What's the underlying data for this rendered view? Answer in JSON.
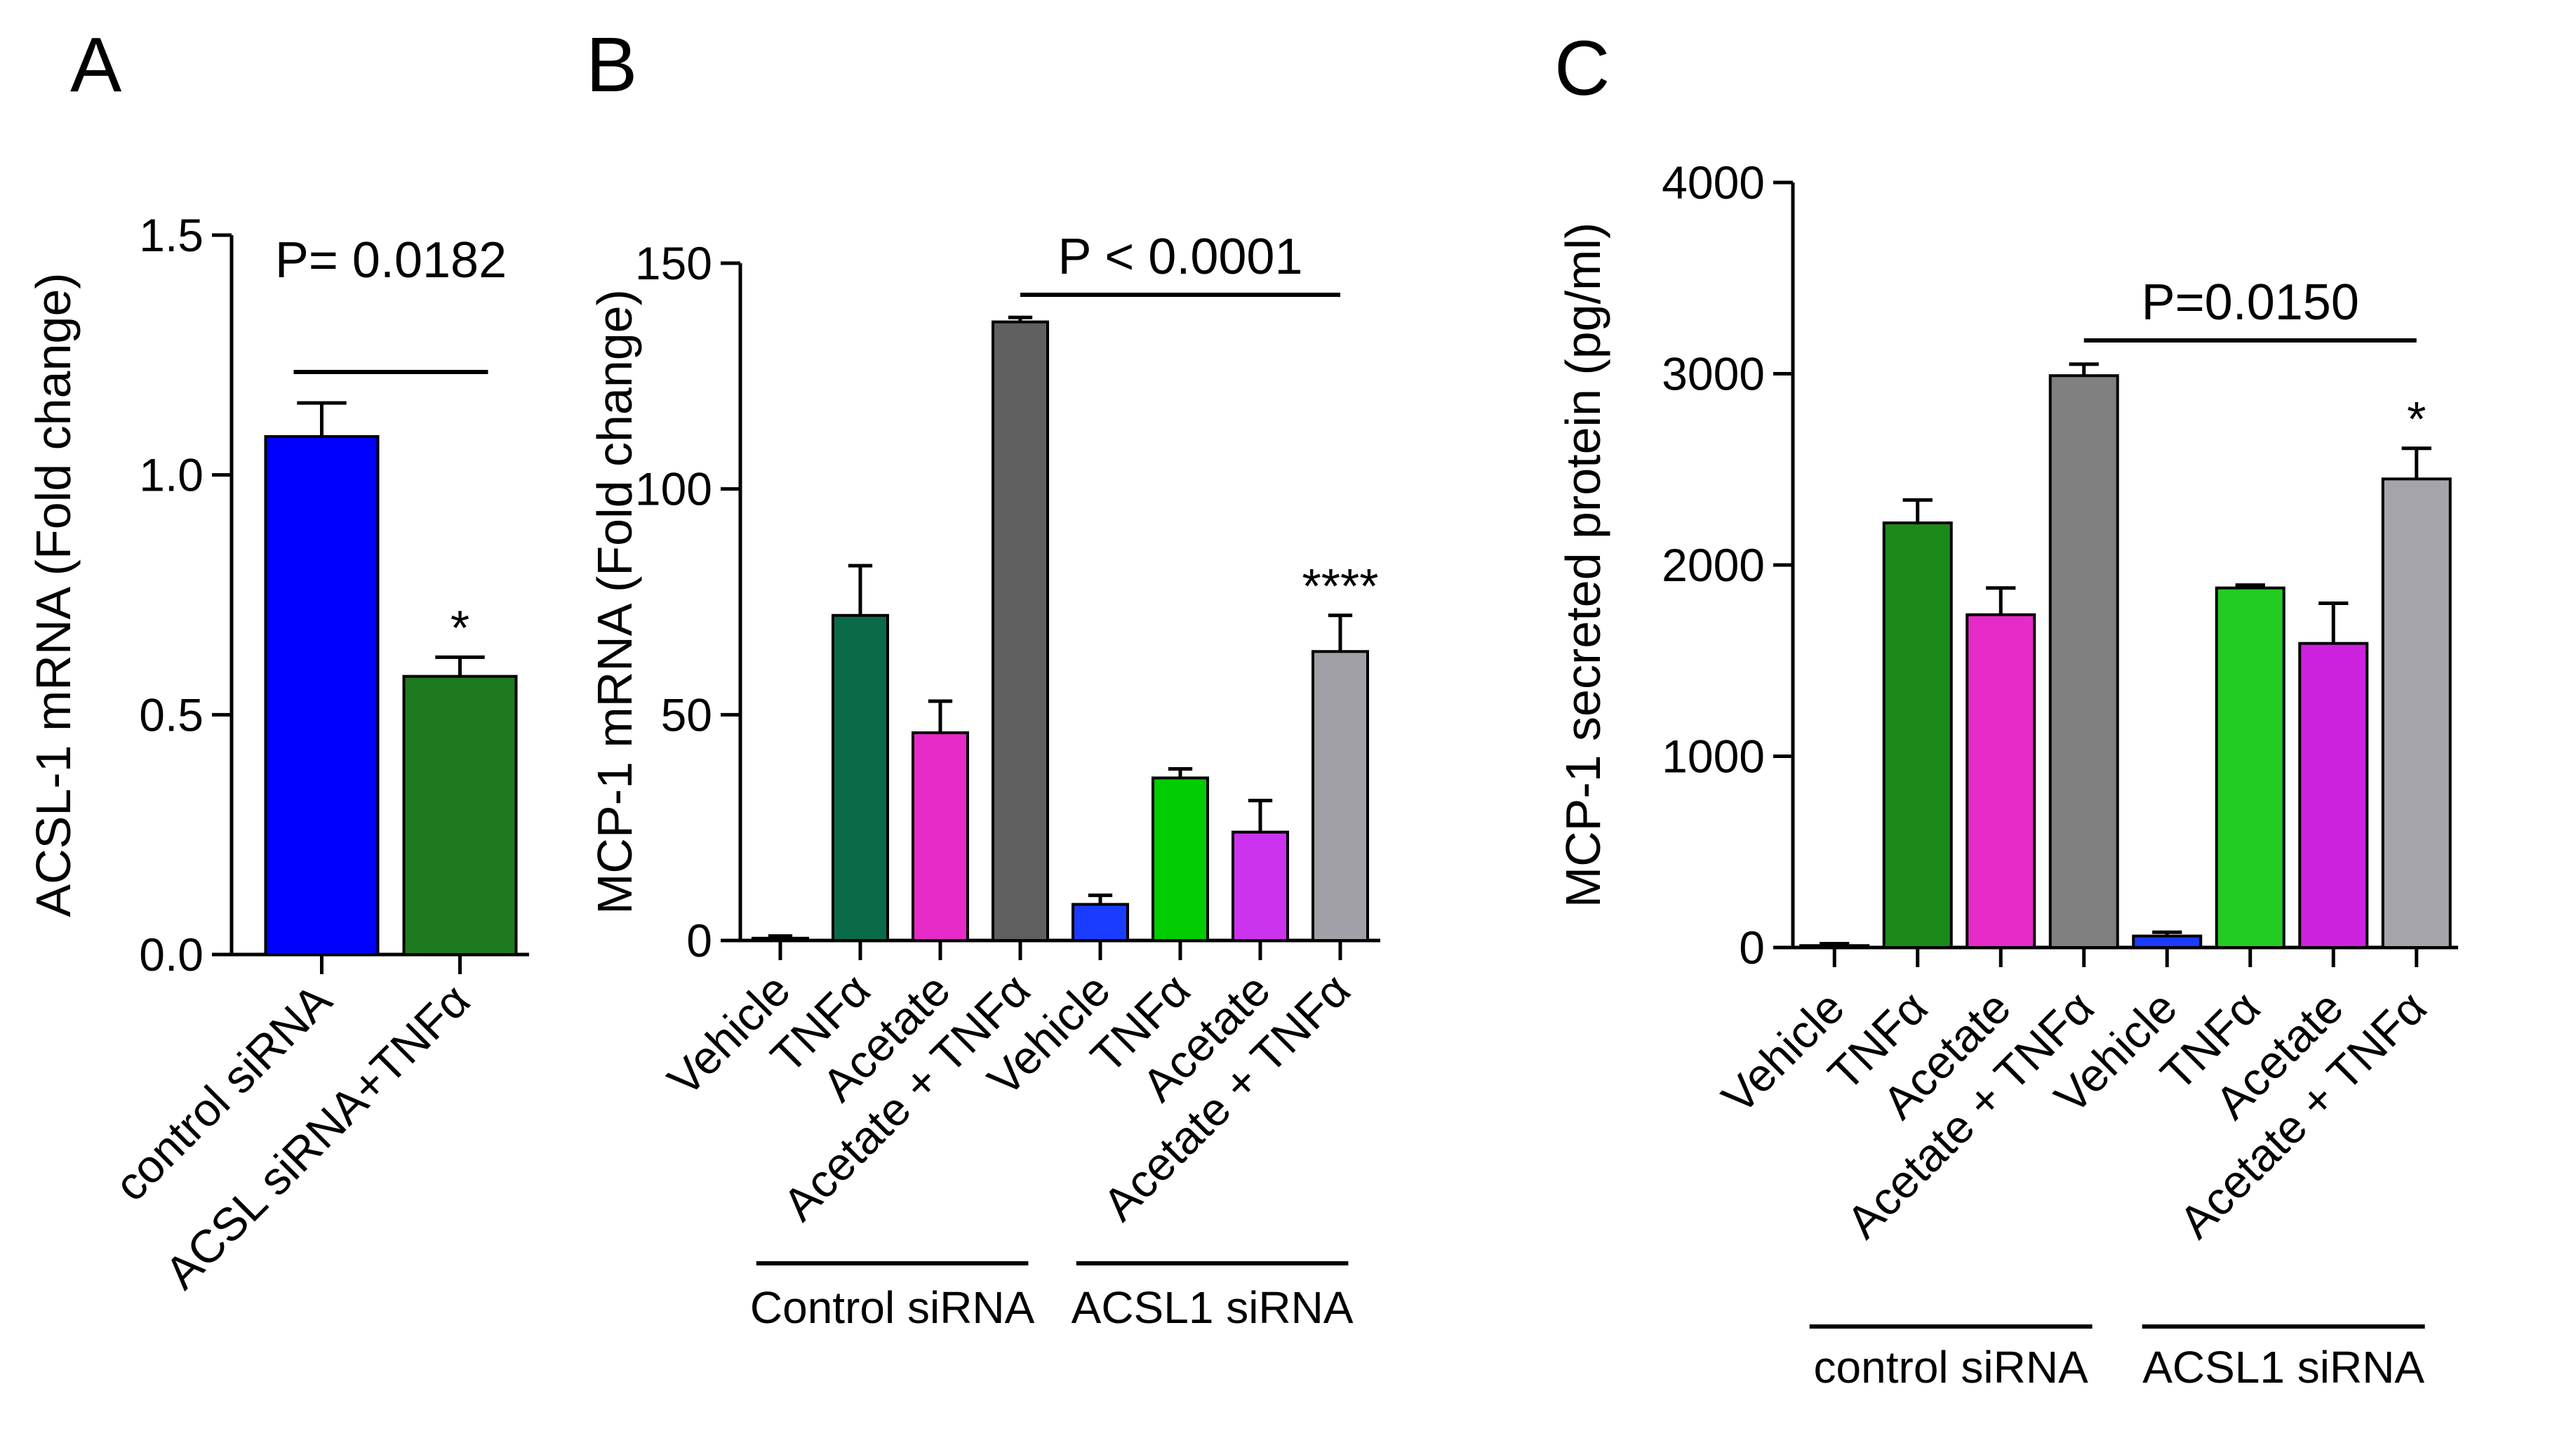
{
  "panels": [
    {
      "letter": "A",
      "chart_data": {
        "type": "bar",
        "ylabel": "ACSL-1 mRNA (Fold change)",
        "ylim": [
          0,
          1.5
        ],
        "yticks": [
          "0.0",
          "0.5",
          "1.0",
          "1.5"
        ],
        "yticks_values": [
          0,
          0.5,
          1.0,
          1.5
        ],
        "categories": [
          "control siRNA",
          "ACSL siRNA+TNFα"
        ],
        "values": [
          1.08,
          0.58
        ],
        "errors": [
          0.07,
          0.04
        ],
        "colors": [
          "#0000ff",
          "#1e7a1e"
        ],
        "significance": [
          "",
          "*"
        ],
        "comparison": {
          "label": "P= 0.0182",
          "from": 0,
          "to": 1
        },
        "groups": []
      }
    },
    {
      "letter": "B",
      "chart_data": {
        "type": "bar",
        "ylabel": "MCP-1 mRNA (Fold change)",
        "ylim": [
          0,
          150
        ],
        "yticks": [
          "0",
          "50",
          "100",
          "150"
        ],
        "yticks_values": [
          0,
          50,
          100,
          150
        ],
        "categories": [
          "Vehicle",
          "TNFα",
          "Acetate",
          "Acetate + TNFα",
          "Vehicle",
          "TNFα",
          "Acetate",
          "Acetate + TNFα"
        ],
        "values": [
          0.5,
          72,
          46,
          137,
          8,
          36,
          24,
          64
        ],
        "errors": [
          0.5,
          11,
          7,
          1,
          2,
          2,
          7,
          8
        ],
        "colors": [
          "#ffffff",
          "#0b6b48",
          "#e62bc8",
          "#606060",
          "#1a3cff",
          "#00cc00",
          "#cc33ee",
          "#a0a0a6"
        ],
        "significance": [
          "",
          "",
          "",
          "",
          "",
          "",
          "",
          "****"
        ],
        "comparison": {
          "label": "P < 0.0001",
          "from": 3,
          "to": 7
        },
        "groups": [
          {
            "label": "Control siRNA",
            "from": 0,
            "to": 3
          },
          {
            "label": "ACSL1 siRNA",
            "from": 4,
            "to": 7
          }
        ]
      }
    },
    {
      "letter": "C",
      "chart_data": {
        "type": "bar",
        "ylabel": "MCP-1  secreted  protein (pg/ml)",
        "ylim": [
          0,
          4000
        ],
        "yticks": [
          "0",
          "1000",
          "2000",
          "3000",
          "4000"
        ],
        "yticks_values": [
          0,
          1000,
          2000,
          3000,
          4000
        ],
        "categories": [
          "Vehicle",
          "TNFα",
          "Acetate",
          "Acetate + TNFα",
          "Vehicle",
          "TNFα",
          "Acetate",
          "Acetate + TNFα"
        ],
        "values": [
          10,
          2220,
          1740,
          2990,
          60,
          1880,
          1590,
          2450
        ],
        "errors": [
          10,
          120,
          140,
          60,
          20,
          15,
          210,
          160
        ],
        "colors": [
          "#ffffff",
          "#1b8a1b",
          "#e62bc8",
          "#808080",
          "#1a3cff",
          "#22cc22",
          "#cc22dd",
          "#a4a4aa"
        ],
        "significance": [
          "",
          "",
          "",
          "",
          "",
          "",
          "",
          "*"
        ],
        "comparison": {
          "label": "P=0.0150",
          "from": 3,
          "to": 7
        },
        "groups": [
          {
            "label": "control siRNA",
            "from": 0,
            "to": 3
          },
          {
            "label": "ACSL1 siRNA",
            "from": 4,
            "to": 7
          }
        ]
      }
    }
  ]
}
